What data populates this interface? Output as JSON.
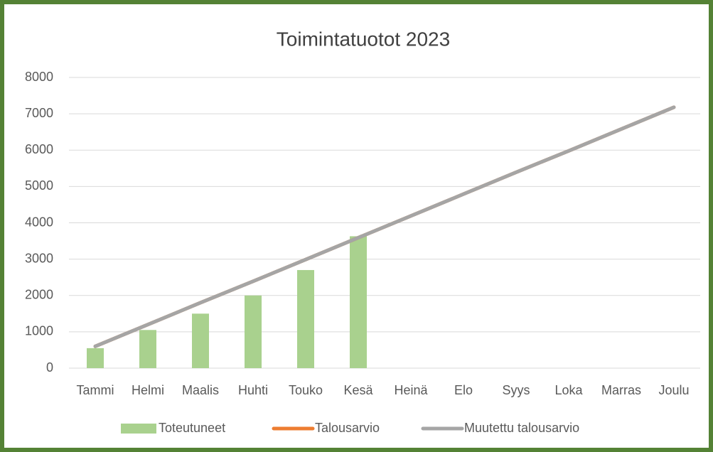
{
  "chart_data": {
    "type": "bar_line",
    "title": "Toimintatuotot 2023",
    "categories": [
      "Tammi",
      "Helmi",
      "Maalis",
      "Huhti",
      "Touko",
      "Kesä",
      "Heinä",
      "Elo",
      "Syys",
      "Loka",
      "Marras",
      "Joulu"
    ],
    "series": [
      {
        "name": "Toteutuneet",
        "type": "bar",
        "color": "#a9d18e",
        "values": [
          550,
          1050,
          1500,
          2000,
          2700,
          3630,
          null,
          null,
          null,
          null,
          null,
          null
        ]
      },
      {
        "name": "Talousarvio",
        "type": "line",
        "color": "#ed7d31",
        "values": [
          600,
          1200,
          1800,
          2390,
          2990,
          3590,
          4190,
          4790,
          5390,
          5980,
          6580,
          7180
        ]
      },
      {
        "name": "Muutettu talousarvio",
        "type": "line",
        "color": "#a5a5a5",
        "values": [
          600,
          1200,
          1800,
          2390,
          2990,
          3590,
          4190,
          4790,
          5390,
          5980,
          6580,
          7180
        ]
      }
    ],
    "ylim": [
      0,
      8000
    ],
    "yticks": [
      0,
      1000,
      2000,
      3000,
      4000,
      5000,
      6000,
      7000,
      8000
    ],
    "grid": true,
    "legend": "bottom"
  }
}
